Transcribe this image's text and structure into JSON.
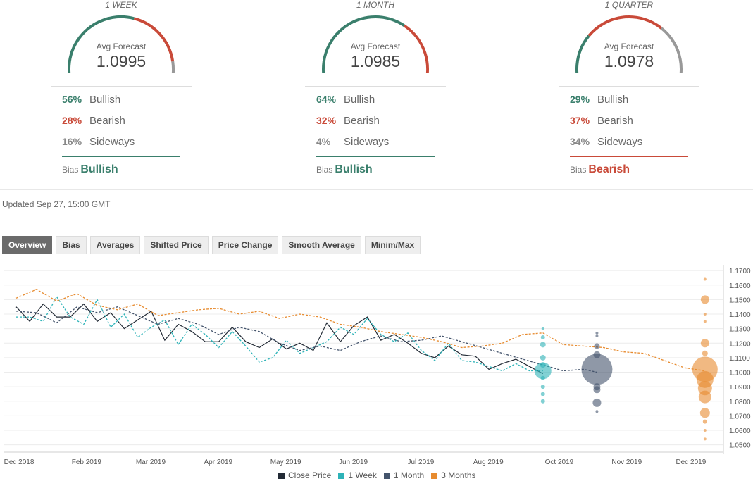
{
  "panels": [
    {
      "title": "1 WEEK",
      "avg_label": "Avg Forecast",
      "avg_value": "1.0995",
      "bullish_pct": "56%",
      "bearish_pct": "28%",
      "sideways_pct": "16%",
      "bullish_label": "Bullish",
      "bearish_label": "Bearish",
      "sideways_label": "Sideways",
      "bias_label": "Bias",
      "bias_value": "Bullish",
      "bias_color": "#3a7f6c",
      "gauge": [
        0.56,
        0.28,
        0.16
      ]
    },
    {
      "title": "1 MONTH",
      "avg_label": "Avg Forecast",
      "avg_value": "1.0985",
      "bullish_pct": "64%",
      "bearish_pct": "32%",
      "sideways_pct": "4%",
      "bullish_label": "Bullish",
      "bearish_label": "Bearish",
      "sideways_label": "Sideways",
      "bias_label": "Bias",
      "bias_value": "Bullish",
      "bias_color": "#3a7f6c",
      "gauge": [
        0.64,
        0.32,
        0.04
      ]
    },
    {
      "title": "1 QUARTER",
      "avg_label": "Avg Forecast",
      "avg_value": "1.0978",
      "bullish_pct": "29%",
      "bearish_pct": "37%",
      "sideways_pct": "34%",
      "bullish_label": "Bullish",
      "bearish_label": "Bearish",
      "sideways_label": "Sideways",
      "bias_label": "Bias",
      "bias_value": "Bearish",
      "bias_color": "#c94a39",
      "gauge": [
        0.29,
        0.37,
        0.34
      ]
    }
  ],
  "gauge_colors": [
    "#3a7f6c",
    "#c94a39",
    "#999999"
  ],
  "updated": "Updated Sep 27, 15:00 GMT",
  "tabs": [
    "Overview",
    "Bias",
    "Averages",
    "Shifted Price",
    "Price Change",
    "Smooth Average",
    "Minim/Max"
  ],
  "active_tab": "Overview",
  "chart_data": {
    "type": "line",
    "x_ticks": [
      "Dec 2018",
      "Feb 2019",
      "Mar 2019",
      "Apr 2019",
      "May 2019",
      "Jun 2019",
      "Jul 2019",
      "Aug 2019",
      "Oct 2019",
      "Nov 2019",
      "Dec 2019"
    ],
    "y_ticks": [
      "1.1700",
      "1.1600",
      "1.1500",
      "1.1400",
      "1.1300",
      "1.1200",
      "1.1100",
      "1.1000",
      "1.0900",
      "1.0800",
      "1.0700",
      "1.0600",
      "1.0500"
    ],
    "ylim": [
      1.045,
      1.172
    ],
    "grid": true,
    "legend_position": "bottom",
    "series": [
      {
        "name": "Close Price",
        "color": "#222a35",
        "dash": false,
        "values": [
          [
            0,
            1.145
          ],
          [
            4,
            1.135
          ],
          [
            8,
            1.147
          ],
          [
            12,
            1.138
          ],
          [
            16,
            1.138
          ],
          [
            20,
            1.147
          ],
          [
            24,
            1.135
          ],
          [
            28,
            1.141
          ],
          [
            32,
            1.13
          ],
          [
            36,
            1.136
          ],
          [
            40,
            1.142
          ],
          [
            44,
            1.122
          ],
          [
            48,
            1.133
          ],
          [
            52,
            1.128
          ],
          [
            56,
            1.121
          ],
          [
            60,
            1.121
          ],
          [
            64,
            1.131
          ],
          [
            68,
            1.121
          ],
          [
            72,
            1.117
          ],
          [
            76,
            1.123
          ],
          [
            80,
            1.116
          ],
          [
            84,
            1.12
          ],
          [
            88,
            1.115
          ],
          [
            92,
            1.134
          ],
          [
            96,
            1.121
          ],
          [
            100,
            1.132
          ],
          [
            104,
            1.138
          ],
          [
            108,
            1.122
          ],
          [
            112,
            1.126
          ],
          [
            116,
            1.12
          ],
          [
            120,
            1.113
          ],
          [
            124,
            1.11
          ],
          [
            128,
            1.118
          ],
          [
            132,
            1.112
          ],
          [
            136,
            1.111
          ],
          [
            140,
            1.102
          ],
          [
            144,
            1.106
          ],
          [
            148,
            1.109
          ],
          [
            152,
            1.104
          ],
          [
            156,
            1.099
          ]
        ]
      },
      {
        "name": "1 Week",
        "color": "#2eb3b8",
        "dash": true,
        "values": [
          [
            0,
            1.138
          ],
          [
            4,
            1.138
          ],
          [
            8,
            1.135
          ],
          [
            12,
            1.152
          ],
          [
            16,
            1.138
          ],
          [
            20,
            1.133
          ],
          [
            24,
            1.15
          ],
          [
            28,
            1.131
          ],
          [
            32,
            1.14
          ],
          [
            36,
            1.124
          ],
          [
            40,
            1.131
          ],
          [
            44,
            1.136
          ],
          [
            48,
            1.119
          ],
          [
            52,
            1.133
          ],
          [
            56,
            1.126
          ],
          [
            60,
            1.117
          ],
          [
            64,
            1.128
          ],
          [
            68,
            1.118
          ],
          [
            72,
            1.107
          ],
          [
            76,
            1.11
          ],
          [
            80,
            1.122
          ],
          [
            84,
            1.113
          ],
          [
            88,
            1.117
          ],
          [
            92,
            1.121
          ],
          [
            96,
            1.131
          ],
          [
            100,
            1.126
          ],
          [
            104,
            1.137
          ],
          [
            108,
            1.126
          ],
          [
            112,
            1.121
          ],
          [
            116,
            1.127
          ],
          [
            120,
            1.115
          ],
          [
            124,
            1.108
          ],
          [
            128,
            1.12
          ],
          [
            132,
            1.108
          ],
          [
            136,
            1.107
          ],
          [
            140,
            1.104
          ],
          [
            144,
            1.101
          ],
          [
            148,
            1.106
          ],
          [
            152,
            1.101
          ],
          [
            156,
            1.101
          ]
        ]
      },
      {
        "name": "1 Month",
        "color": "#44546c",
        "dash": true,
        "values": [
          [
            0,
            1.142
          ],
          [
            6,
            1.141
          ],
          [
            12,
            1.134
          ],
          [
            18,
            1.145
          ],
          [
            24,
            1.141
          ],
          [
            30,
            1.145
          ],
          [
            36,
            1.139
          ],
          [
            42,
            1.133
          ],
          [
            48,
            1.137
          ],
          [
            54,
            1.133
          ],
          [
            60,
            1.126
          ],
          [
            66,
            1.131
          ],
          [
            72,
            1.128
          ],
          [
            78,
            1.12
          ],
          [
            84,
            1.115
          ],
          [
            90,
            1.118
          ],
          [
            96,
            1.115
          ],
          [
            102,
            1.121
          ],
          [
            108,
            1.125
          ],
          [
            114,
            1.121
          ],
          [
            120,
            1.122
          ],
          [
            126,
            1.125
          ],
          [
            132,
            1.121
          ],
          [
            138,
            1.117
          ],
          [
            144,
            1.113
          ],
          [
            150,
            1.109
          ],
          [
            156,
            1.105
          ],
          [
            162,
            1.101
          ],
          [
            168,
            1.102
          ],
          [
            172,
            1.1
          ]
        ]
      },
      {
        "name": "3 Months",
        "color": "#e78b2f",
        "dash": true,
        "values": [
          [
            0,
            1.151
          ],
          [
            6,
            1.157
          ],
          [
            12,
            1.149
          ],
          [
            18,
            1.154
          ],
          [
            24,
            1.146
          ],
          [
            30,
            1.143
          ],
          [
            36,
            1.147
          ],
          [
            42,
            1.139
          ],
          [
            48,
            1.141
          ],
          [
            54,
            1.143
          ],
          [
            60,
            1.144
          ],
          [
            66,
            1.14
          ],
          [
            72,
            1.142
          ],
          [
            78,
            1.137
          ],
          [
            84,
            1.14
          ],
          [
            90,
            1.138
          ],
          [
            96,
            1.133
          ],
          [
            102,
            1.131
          ],
          [
            108,
            1.128
          ],
          [
            114,
            1.126
          ],
          [
            120,
            1.124
          ],
          [
            126,
            1.121
          ],
          [
            132,
            1.117
          ],
          [
            138,
            1.118
          ],
          [
            144,
            1.12
          ],
          [
            150,
            1.126
          ],
          [
            156,
            1.127
          ],
          [
            162,
            1.119
          ],
          [
            168,
            1.118
          ],
          [
            174,
            1.117
          ],
          [
            180,
            1.114
          ],
          [
            186,
            1.113
          ],
          [
            192,
            1.108
          ],
          [
            198,
            1.103
          ],
          [
            204,
            1.101
          ]
        ]
      }
    ],
    "bubbles": [
      {
        "group": "1 Week",
        "x": 156,
        "color": "#2eb3b8",
        "points": [
          [
            1.13,
            2
          ],
          [
            1.124,
            3
          ],
          [
            1.119,
            4
          ],
          [
            1.11,
            4
          ],
          [
            1.105,
            4
          ],
          [
            1.101,
            12
          ],
          [
            1.096,
            3
          ],
          [
            1.09,
            3
          ],
          [
            1.085,
            3
          ],
          [
            1.08,
            3
          ]
        ]
      },
      {
        "group": "1 Month",
        "x": 172,
        "color": "#44546c",
        "points": [
          [
            1.127,
            2
          ],
          [
            1.125,
            2
          ],
          [
            1.118,
            4
          ],
          [
            1.112,
            5
          ],
          [
            1.102,
            22
          ],
          [
            1.09,
            5
          ],
          [
            1.088,
            5
          ],
          [
            1.079,
            6
          ],
          [
            1.073,
            2
          ]
        ]
      },
      {
        "group": "3 Months",
        "x": 204,
        "color": "#e78b2f",
        "points": [
          [
            1.164,
            2
          ],
          [
            1.15,
            6
          ],
          [
            1.14,
            2
          ],
          [
            1.135,
            2
          ],
          [
            1.12,
            6
          ],
          [
            1.113,
            4
          ],
          [
            1.102,
            18
          ],
          [
            1.095,
            12
          ],
          [
            1.089,
            10
          ],
          [
            1.083,
            9
          ],
          [
            1.072,
            7
          ],
          [
            1.066,
            3
          ],
          [
            1.06,
            2
          ],
          [
            1.054,
            2
          ]
        ]
      }
    ]
  }
}
